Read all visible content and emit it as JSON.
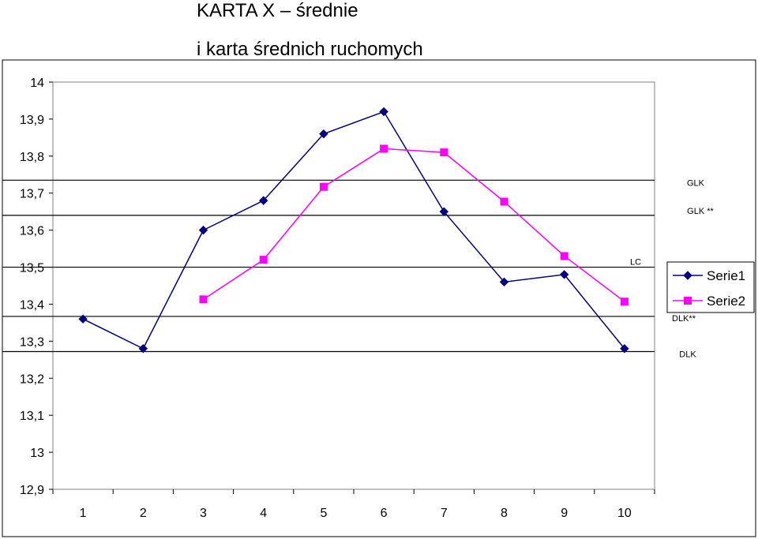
{
  "chart_data": {
    "type": "line",
    "title": "KARTA X – średnie",
    "subtitle": "i karta średnich ruchomych",
    "categories": [
      "1",
      "2",
      "3",
      "4",
      "5",
      "6",
      "7",
      "8",
      "9",
      "10"
    ],
    "series": [
      {
        "name": "Serie1",
        "color": "#000080",
        "marker": "diamond",
        "values": [
          13.36,
          13.28,
          13.6,
          13.68,
          13.86,
          13.92,
          13.65,
          13.46,
          13.48,
          13.28
        ]
      },
      {
        "name": "Serie2",
        "color": "#ff00ff",
        "marker": "square",
        "values": [
          null,
          null,
          13.413,
          13.52,
          13.717,
          13.82,
          13.81,
          13.677,
          13.53,
          13.407
        ]
      }
    ],
    "reference_lines": [
      {
        "label": "GLK",
        "value": 13.735
      },
      {
        "label": "GLK **",
        "value": 13.64
      },
      {
        "label": "LC",
        "value": 13.5
      },
      {
        "label": "DLK**",
        "value": 13.367
      },
      {
        "label": "DLK",
        "value": 13.272
      }
    ],
    "yticks": [
      "14",
      "13,9",
      "13,8",
      "13,7",
      "13,6",
      "13,5",
      "13,4",
      "13,3",
      "13,2",
      "13,1",
      "13",
      "12,9"
    ],
    "ylim": [
      12.9,
      14.0
    ],
    "xlabel": "",
    "ylabel": "",
    "grid": false,
    "legend_position": "right"
  }
}
